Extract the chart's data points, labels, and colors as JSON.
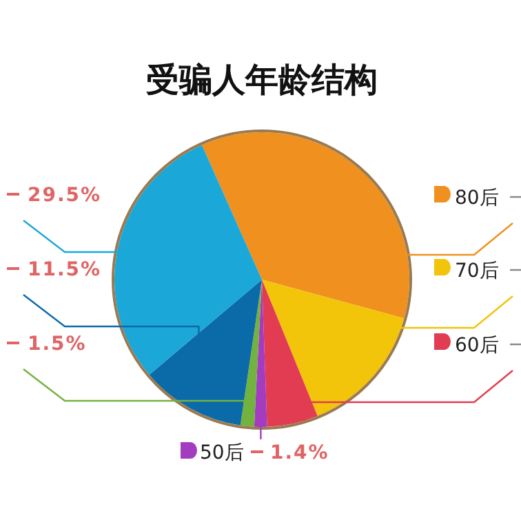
{
  "chart_data": {
    "type": "pie",
    "title": "受骗人年龄结构",
    "categories": [
      "80后",
      "70后",
      "60后",
      "50后",
      null,
      null,
      null
    ],
    "values": [
      35.9,
      14.6,
      5.6,
      1.4,
      1.5,
      11.5,
      29.5
    ],
    "colors": [
      "#f0901e",
      "#f2c40a",
      "#e23c52",
      "#a43cc0",
      "#72b23e",
      "#0b6aa8",
      "#1ba8d8"
    ],
    "value_labels": [
      null,
      null,
      null,
      "1.4%",
      "1.5%",
      "11.5%",
      "29.5%"
    ],
    "legend": "right"
  }
}
